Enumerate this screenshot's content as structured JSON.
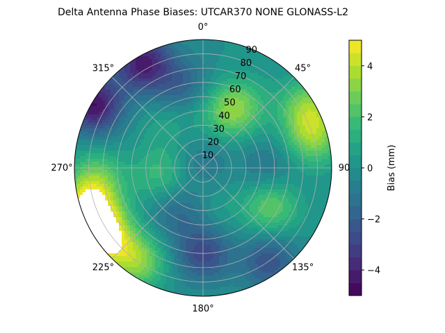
{
  "chart_data": {
    "type": "heatmap",
    "projection": "polar",
    "title": "Delta Antenna Phase Biases: UTCAR370        NONE GLONASS-L2",
    "angular_axis": {
      "zero_location": "top",
      "direction": "clockwise",
      "tick_labels": [
        "0°",
        "45°",
        "90",
        "135°",
        "180°",
        "225°",
        "270°",
        "315°"
      ],
      "tick_angles_deg": [
        0,
        45,
        90,
        135,
        180,
        225,
        270,
        315
      ]
    },
    "radial_axis": {
      "range": [
        0,
        90
      ],
      "tick_values": [
        10,
        20,
        30,
        40,
        50,
        60,
        70,
        80,
        90
      ],
      "tick_labels": [
        "10",
        "20",
        "30",
        "40",
        "50",
        "60",
        "70",
        "80",
        "90"
      ],
      "label_angle_deg": 22.5
    },
    "grid": true,
    "colorbar": {
      "label": "Bias (mm)",
      "range": [
        -5,
        5
      ],
      "levels": [
        -5,
        -4.5,
        -4,
        -3.5,
        -3,
        -2.5,
        -2,
        -1.5,
        -1,
        -0.5,
        0,
        0.5,
        1,
        1.5,
        2,
        2.5,
        3,
        3.5,
        4,
        4.5,
        5
      ],
      "tick_values": [
        -4,
        -2,
        0,
        2,
        4
      ],
      "tick_labels": [
        "−4",
        "−2",
        "0",
        "2",
        "4"
      ],
      "colormap": "viridis",
      "overflow_color": "#ffffff"
    },
    "data_field": {
      "description_units": "bias in mm at (azimuth deg, zenith deg)",
      "blobs": [
        {
          "az": 30,
          "zen": 50,
          "bias": 2.4
        },
        {
          "az": 20,
          "zen": 40,
          "bias": 1.4
        },
        {
          "az": 75,
          "zen": 80,
          "bias": 2.9
        },
        {
          "az": 60,
          "zen": 85,
          "bias": 3.0
        },
        {
          "az": 120,
          "zen": 55,
          "bias": 2.6
        },
        {
          "az": 235,
          "zen": 85,
          "bias": 5.2
        },
        {
          "az": 250,
          "zen": 85,
          "bias": 5.0
        },
        {
          "az": 215,
          "zen": 80,
          "bias": 3.2
        },
        {
          "az": 265,
          "zen": 75,
          "bias": 2.3
        },
        {
          "az": 260,
          "zen": 30,
          "bias": 1.8
        },
        {
          "az": 330,
          "zen": 85,
          "bias": -4.2
        },
        {
          "az": 300,
          "zen": 88,
          "bias": -4.5
        },
        {
          "az": 180,
          "zen": 60,
          "bias": -2.8
        },
        {
          "az": 145,
          "zen": 80,
          "bias": -2.4
        },
        {
          "az": 345,
          "zen": 60,
          "bias": -1.8
        },
        {
          "az": 210,
          "zen": 35,
          "bias": -1.6
        },
        {
          "az": 90,
          "zen": 45,
          "bias": -1.2
        },
        {
          "az": 0,
          "zen": 5,
          "bias": -1.0
        },
        {
          "az": 320,
          "zen": 40,
          "bias": 0.8
        },
        {
          "az": 160,
          "zen": 30,
          "bias": 0.6
        }
      ],
      "baseline": 0.0
    }
  }
}
